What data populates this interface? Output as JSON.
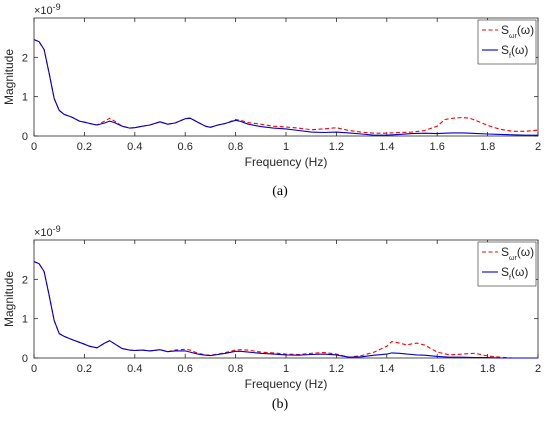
{
  "chart_data": [
    {
      "type": "line",
      "panel_label": "(a)",
      "xlabel": "Frequency (Hz)",
      "ylabel": "Magnitude",
      "exponent_label": "×10",
      "exponent_power": "-9",
      "xlim": [
        0,
        2
      ],
      "ylim": [
        0,
        3
      ],
      "xticks": [
        "0",
        "0.2",
        "0.4",
        "0.6",
        "0.8",
        "1",
        "1.2",
        "1.4",
        "1.6",
        "1.8",
        "2"
      ],
      "yticks": [
        "0",
        "1",
        "2"
      ],
      "grid": false,
      "legend_position": "top-right",
      "series": [
        {
          "name": "S_ωr(ω)",
          "legend_main": "S",
          "legend_sub": "ωr",
          "legend_tail": "(ω)",
          "color": "#ff0000",
          "style": "dashed",
          "x": [
            0,
            0.02,
            0.04,
            0.06,
            0.08,
            0.1,
            0.12,
            0.15,
            0.18,
            0.2,
            0.22,
            0.25,
            0.28,
            0.3,
            0.32,
            0.35,
            0.38,
            0.4,
            0.43,
            0.46,
            0.5,
            0.53,
            0.56,
            0.6,
            0.62,
            0.65,
            0.68,
            0.7,
            0.73,
            0.76,
            0.8,
            0.82,
            0.85,
            0.9,
            0.95,
            1.0,
            1.05,
            1.1,
            1.15,
            1.2,
            1.25,
            1.3,
            1.35,
            1.4,
            1.45,
            1.5,
            1.55,
            1.6,
            1.63,
            1.66,
            1.7,
            1.73,
            1.76,
            1.8,
            1.85,
            1.9,
            1.95,
            2.0
          ],
          "y": [
            2.45,
            2.4,
            2.2,
            1.6,
            0.95,
            0.65,
            0.55,
            0.48,
            0.38,
            0.35,
            0.32,
            0.28,
            0.38,
            0.45,
            0.38,
            0.25,
            0.2,
            0.21,
            0.25,
            0.28,
            0.36,
            0.3,
            0.33,
            0.44,
            0.46,
            0.35,
            0.25,
            0.22,
            0.28,
            0.32,
            0.42,
            0.4,
            0.34,
            0.3,
            0.25,
            0.23,
            0.2,
            0.16,
            0.18,
            0.21,
            0.14,
            0.1,
            0.07,
            0.07,
            0.09,
            0.1,
            0.14,
            0.25,
            0.42,
            0.45,
            0.47,
            0.45,
            0.38,
            0.27,
            0.17,
            0.12,
            0.12,
            0.15
          ]
        },
        {
          "name": "S_f(ω)",
          "legend_main": "S",
          "legend_sub": "f",
          "legend_tail": "(ω)",
          "color": "#0000cc",
          "style": "solid",
          "x": [
            0,
            0.02,
            0.04,
            0.06,
            0.08,
            0.1,
            0.12,
            0.15,
            0.18,
            0.2,
            0.22,
            0.25,
            0.28,
            0.3,
            0.32,
            0.35,
            0.38,
            0.4,
            0.43,
            0.46,
            0.5,
            0.53,
            0.56,
            0.6,
            0.62,
            0.65,
            0.68,
            0.7,
            0.73,
            0.76,
            0.8,
            0.82,
            0.85,
            0.9,
            0.95,
            1.0,
            1.05,
            1.1,
            1.15,
            1.2,
            1.25,
            1.3,
            1.35,
            1.4,
            1.45,
            1.5,
            1.55,
            1.6,
            1.63,
            1.66,
            1.7,
            1.73,
            1.76,
            1.8,
            1.85,
            1.9,
            1.95,
            2.0
          ],
          "y": [
            2.45,
            2.4,
            2.2,
            1.6,
            0.95,
            0.65,
            0.55,
            0.48,
            0.38,
            0.35,
            0.32,
            0.28,
            0.33,
            0.38,
            0.34,
            0.25,
            0.2,
            0.21,
            0.25,
            0.28,
            0.36,
            0.3,
            0.33,
            0.44,
            0.45,
            0.35,
            0.25,
            0.22,
            0.28,
            0.32,
            0.4,
            0.37,
            0.3,
            0.24,
            0.2,
            0.18,
            0.14,
            0.1,
            0.09,
            0.1,
            0.08,
            0.05,
            0.02,
            0.02,
            0.04,
            0.06,
            0.07,
            0.06,
            0.07,
            0.08,
            0.08,
            0.07,
            0.06,
            0.05,
            0.04,
            0.03,
            0.02,
            0.02
          ]
        }
      ]
    },
    {
      "type": "line",
      "panel_label": "(b)",
      "xlabel": "Frequency (Hz)",
      "ylabel": "Magnitude",
      "exponent_label": "×10",
      "exponent_power": "-9",
      "xlim": [
        0,
        2
      ],
      "ylim": [
        0,
        3
      ],
      "xticks": [
        "0",
        "0.2",
        "0.4",
        "0.6",
        "0.8",
        "1",
        "1.2",
        "1.4",
        "1.6",
        "1.8",
        "2"
      ],
      "yticks": [
        "0",
        "1",
        "2"
      ],
      "grid": false,
      "legend_position": "top-right",
      "series": [
        {
          "name": "S_ωr(ω)",
          "legend_main": "S",
          "legend_sub": "ωr",
          "legend_tail": "(ω)",
          "color": "#ff0000",
          "style": "dashed",
          "x": [
            0,
            0.02,
            0.04,
            0.06,
            0.08,
            0.1,
            0.12,
            0.15,
            0.18,
            0.2,
            0.22,
            0.25,
            0.28,
            0.3,
            0.32,
            0.35,
            0.38,
            0.4,
            0.43,
            0.46,
            0.5,
            0.53,
            0.56,
            0.6,
            0.62,
            0.65,
            0.68,
            0.7,
            0.73,
            0.76,
            0.8,
            0.82,
            0.85,
            0.9,
            0.95,
            1.0,
            1.05,
            1.1,
            1.15,
            1.2,
            1.25,
            1.3,
            1.35,
            1.4,
            1.42,
            1.45,
            1.48,
            1.5,
            1.52,
            1.55,
            1.6,
            1.65,
            1.7,
            1.75,
            1.8,
            1.85,
            1.9,
            1.95,
            2.0
          ],
          "y": [
            2.45,
            2.4,
            2.2,
            1.6,
            0.95,
            0.62,
            0.55,
            0.47,
            0.4,
            0.35,
            0.3,
            0.26,
            0.38,
            0.44,
            0.36,
            0.24,
            0.2,
            0.19,
            0.2,
            0.18,
            0.21,
            0.16,
            0.2,
            0.22,
            0.2,
            0.12,
            0.08,
            0.07,
            0.1,
            0.14,
            0.2,
            0.21,
            0.2,
            0.15,
            0.13,
            0.1,
            0.09,
            0.12,
            0.14,
            0.1,
            0.02,
            0.06,
            0.15,
            0.3,
            0.42,
            0.38,
            0.33,
            0.36,
            0.38,
            0.33,
            0.15,
            0.08,
            0.1,
            0.12,
            0.05,
            0.02,
            0.0,
            0.0,
            0.0
          ]
        },
        {
          "name": "S_f(ω)",
          "legend_main": "S",
          "legend_sub": "f",
          "legend_tail": "(ω)",
          "color": "#0000cc",
          "style": "solid",
          "x": [
            0,
            0.02,
            0.04,
            0.06,
            0.08,
            0.1,
            0.12,
            0.15,
            0.18,
            0.2,
            0.22,
            0.25,
            0.28,
            0.3,
            0.32,
            0.35,
            0.38,
            0.4,
            0.43,
            0.46,
            0.5,
            0.53,
            0.56,
            0.6,
            0.62,
            0.65,
            0.68,
            0.7,
            0.73,
            0.76,
            0.8,
            0.82,
            0.85,
            0.9,
            0.95,
            1.0,
            1.05,
            1.1,
            1.15,
            1.2,
            1.25,
            1.3,
            1.35,
            1.4,
            1.42,
            1.45,
            1.48,
            1.5,
            1.52,
            1.55,
            1.6,
            1.65,
            1.7,
            1.75,
            1.8,
            1.85,
            1.9,
            1.95,
            2.0
          ],
          "y": [
            2.45,
            2.4,
            2.2,
            1.6,
            0.95,
            0.62,
            0.55,
            0.47,
            0.4,
            0.35,
            0.3,
            0.26,
            0.38,
            0.44,
            0.36,
            0.24,
            0.2,
            0.19,
            0.2,
            0.18,
            0.21,
            0.16,
            0.18,
            0.18,
            0.15,
            0.1,
            0.07,
            0.06,
            0.09,
            0.12,
            0.17,
            0.17,
            0.15,
            0.12,
            0.1,
            0.08,
            0.07,
            0.09,
            0.1,
            0.08,
            0.02,
            0.03,
            0.07,
            0.1,
            0.13,
            0.12,
            0.1,
            0.09,
            0.08,
            0.07,
            0.04,
            0.02,
            0.02,
            0.01,
            0.01,
            0.0,
            0.0,
            0.0,
            0.0
          ]
        }
      ]
    }
  ]
}
